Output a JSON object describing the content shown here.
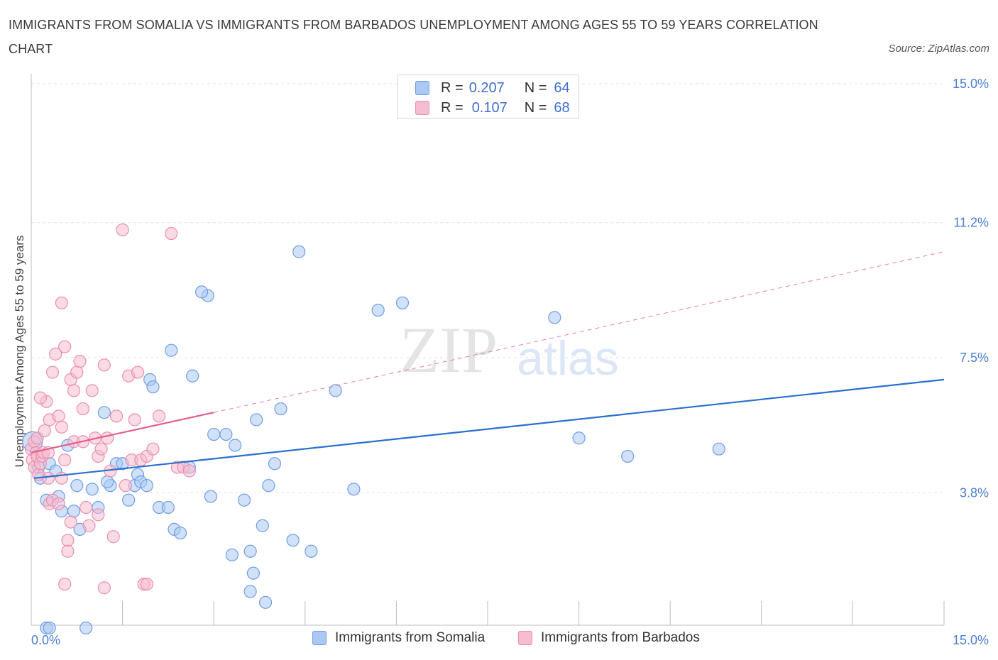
{
  "title": "IMMIGRANTS FROM SOMALIA VS IMMIGRANTS FROM BARBADOS UNEMPLOYMENT AMONG AGES 55 TO 59 YEARS CORRELATION CHART",
  "source": "Source: ZipAtlas.com",
  "watermark": {
    "zip": "ZIP",
    "atlas": "atlas"
  },
  "colors": {
    "somalia_fill": "#aac8f3",
    "somalia_stroke": "#6f9ee6",
    "somalia_line": "#2a6fd0",
    "barbados_fill": "#f6bcd0",
    "barbados_stroke": "#ea8fb0",
    "barbados_line": "#e0608d",
    "tick_label": "#4a7fd4",
    "grid": "#e2e2e2"
  },
  "stats_legend": [
    {
      "r_label": "R = ",
      "r_value": "0.207",
      "n_label": "N = ",
      "n_value": "64"
    },
    {
      "r_label": "R = ",
      "r_value": "0.107",
      "n_label": "N = ",
      "n_value": "68"
    }
  ],
  "chart_data": {
    "type": "scatter",
    "title": "IMMIGRANTS FROM SOMALIA VS IMMIGRANTS FROM BARBADOS UNEMPLOYMENT AMONG AGES 55 TO 59 YEARS CORRELATION CHART",
    "xlabel": "",
    "ylabel": "Unemployment Among Ages 55 to 59 years",
    "xlim": [
      0,
      15
    ],
    "ylim": [
      0,
      15
    ],
    "x_tick_labels": [
      "0.0%",
      "15.0%"
    ],
    "y_ticks": [
      {
        "value": 3.8,
        "label": "3.8%"
      },
      {
        "value": 7.5,
        "label": "7.5%"
      },
      {
        "value": 11.2,
        "label": "11.2%"
      },
      {
        "value": 15.0,
        "label": "15.0%"
      }
    ],
    "grid": true,
    "legend_position": "bottom-center",
    "series": [
      {
        "name": "Immigrants from Somalia",
        "R": 0.207,
        "N": 64,
        "trend": {
          "x0": 0.05,
          "y0": 4.2,
          "x1": 15.0,
          "y1": 6.9
        },
        "points": [
          [
            0.02,
            5.2
          ],
          [
            0.15,
            4.2
          ],
          [
            0.25,
            3.6
          ],
          [
            0.3,
            4.6
          ],
          [
            0.4,
            4.4
          ],
          [
            0.45,
            3.7
          ],
          [
            0.5,
            3.3
          ],
          [
            0.6,
            5.1
          ],
          [
            0.7,
            3.3
          ],
          [
            0.75,
            4.0
          ],
          [
            0.8,
            2.8
          ],
          [
            1.0,
            3.9
          ],
          [
            1.1,
            3.4
          ],
          [
            1.2,
            6.0
          ],
          [
            1.3,
            4.0
          ],
          [
            1.4,
            4.6
          ],
          [
            1.5,
            4.6
          ],
          [
            1.6,
            3.6
          ],
          [
            1.7,
            4.0
          ],
          [
            1.75,
            4.3
          ],
          [
            1.8,
            4.1
          ],
          [
            1.9,
            4.0
          ],
          [
            1.95,
            6.9
          ],
          [
            2.0,
            6.7
          ],
          [
            2.1,
            3.4
          ],
          [
            2.25,
            3.4
          ],
          [
            2.3,
            7.7
          ],
          [
            2.35,
            2.8
          ],
          [
            2.45,
            2.7
          ],
          [
            2.6,
            4.5
          ],
          [
            2.65,
            7.0
          ],
          [
            2.9,
            9.2
          ],
          [
            2.95,
            3.7
          ],
          [
            3.0,
            5.4
          ],
          [
            3.2,
            5.4
          ],
          [
            3.3,
            2.1
          ],
          [
            3.35,
            5.1
          ],
          [
            3.5,
            3.6
          ],
          [
            3.6,
            2.2
          ],
          [
            3.65,
            1.6
          ],
          [
            3.8,
            2.9
          ],
          [
            3.9,
            4.0
          ],
          [
            4.0,
            4.6
          ],
          [
            4.1,
            6.1
          ],
          [
            4.3,
            2.5
          ],
          [
            4.4,
            10.4
          ],
          [
            4.6,
            2.2
          ],
          [
            5.0,
            6.6
          ],
          [
            5.3,
            3.9
          ],
          [
            5.7,
            8.8
          ],
          [
            6.1,
            9.0
          ],
          [
            8.6,
            8.6
          ],
          [
            9.0,
            5.3
          ],
          [
            9.8,
            4.8
          ],
          [
            11.3,
            5.0
          ],
          [
            0.25,
            0.1
          ],
          [
            0.3,
            0.1
          ],
          [
            0.9,
            0.1
          ],
          [
            2.8,
            9.3
          ],
          [
            3.6,
            1.1
          ],
          [
            3.85,
            0.8
          ],
          [
            1.25,
            4.1
          ],
          [
            0.12,
            4.5
          ],
          [
            3.7,
            5.8
          ]
        ]
      },
      {
        "name": "Immigrants from Barbados",
        "R": 0.107,
        "N": 68,
        "trend": {
          "x0": 0.0,
          "y0": 4.9,
          "x1": 3.0,
          "y1": 6.0,
          "dashed_to_x": 15.0,
          "dashed_to_y": 10.4
        },
        "points": [
          [
            0.0,
            5.0
          ],
          [
            0.02,
            4.7
          ],
          [
            0.05,
            4.5
          ],
          [
            0.05,
            5.2
          ],
          [
            0.08,
            4.9
          ],
          [
            0.1,
            5.3
          ],
          [
            0.1,
            4.8
          ],
          [
            0.12,
            4.3
          ],
          [
            0.15,
            4.6
          ],
          [
            0.18,
            4.8
          ],
          [
            0.2,
            4.9
          ],
          [
            0.22,
            5.5
          ],
          [
            0.25,
            6.3
          ],
          [
            0.28,
            4.2
          ],
          [
            0.3,
            3.5
          ],
          [
            0.3,
            5.8
          ],
          [
            0.35,
            3.6
          ],
          [
            0.35,
            7.1
          ],
          [
            0.4,
            7.6
          ],
          [
            0.45,
            3.5
          ],
          [
            0.45,
            5.9
          ],
          [
            0.5,
            4.2
          ],
          [
            0.5,
            9.0
          ],
          [
            0.55,
            7.8
          ],
          [
            0.55,
            4.7
          ],
          [
            0.6,
            2.5
          ],
          [
            0.6,
            2.2
          ],
          [
            0.65,
            6.9
          ],
          [
            0.7,
            6.6
          ],
          [
            0.7,
            5.2
          ],
          [
            0.75,
            7.1
          ],
          [
            0.8,
            7.4
          ],
          [
            0.85,
            5.2
          ],
          [
            0.9,
            3.4
          ],
          [
            0.95,
            2.9
          ],
          [
            1.0,
            6.6
          ],
          [
            1.1,
            4.8
          ],
          [
            1.1,
            3.2
          ],
          [
            1.15,
            5.0
          ],
          [
            1.2,
            7.3
          ],
          [
            1.25,
            5.3
          ],
          [
            1.3,
            4.4
          ],
          [
            1.35,
            2.6
          ],
          [
            1.4,
            5.9
          ],
          [
            1.5,
            11.0
          ],
          [
            1.55,
            4.0
          ],
          [
            1.6,
            7.0
          ],
          [
            1.65,
            4.7
          ],
          [
            1.7,
            5.8
          ],
          [
            1.75,
            7.1
          ],
          [
            1.8,
            4.7
          ],
          [
            1.85,
            1.3
          ],
          [
            1.9,
            4.8
          ],
          [
            2.0,
            5.0
          ],
          [
            2.1,
            5.9
          ],
          [
            2.3,
            10.9
          ],
          [
            2.4,
            4.5
          ],
          [
            2.5,
            4.5
          ],
          [
            2.6,
            4.4
          ],
          [
            0.55,
            1.3
          ],
          [
            1.2,
            1.2
          ],
          [
            1.9,
            1.3
          ],
          [
            0.65,
            3.0
          ],
          [
            0.28,
            4.9
          ],
          [
            0.85,
            6.1
          ],
          [
            1.05,
            5.3
          ],
          [
            0.5,
            5.6
          ],
          [
            0.15,
            6.4
          ]
        ]
      }
    ]
  },
  "legend": [
    {
      "label": "Immigrants from Somalia"
    },
    {
      "label": "Immigrants from Barbados"
    }
  ]
}
